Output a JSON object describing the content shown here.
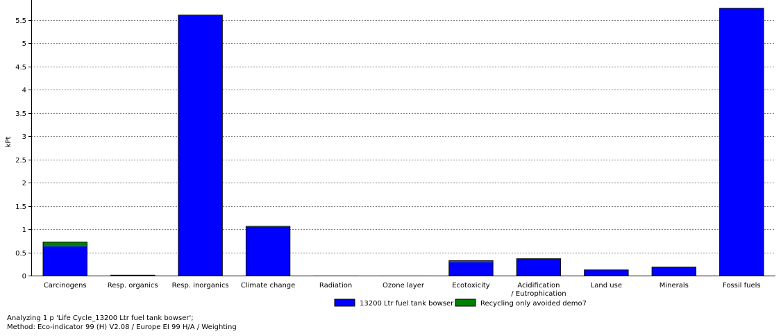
{
  "chart_data": {
    "type": "bar",
    "stacked": true,
    "ylabel": "kPt",
    "xlabel": "",
    "ylim": [
      0,
      5.75
    ],
    "y_ticks": [
      0,
      0.5,
      1,
      1.5,
      2,
      2.5,
      3,
      3.5,
      4,
      4.5,
      5,
      5.5
    ],
    "y_tick_labels": [
      "0",
      "0.5",
      "1",
      "1.5",
      "2",
      "2.5",
      "3",
      "3.5",
      "4",
      "4.5",
      "5",
      "5.5"
    ],
    "grid": true,
    "legend_position": "bottom-center",
    "categories": [
      "Carcinogens",
      "Resp. organics",
      "Resp. inorganics",
      "Climate change",
      "Radiation",
      "Ozone layer",
      "Ecotoxicity",
      "Acidification / Eutrophication",
      "Land use",
      "Minerals",
      "Fossil fuels"
    ],
    "category_label_lines": [
      [
        "Carcinogens"
      ],
      [
        "Resp. organics"
      ],
      [
        "Resp. inorganics"
      ],
      [
        "Climate change"
      ],
      [
        "Radiation"
      ],
      [
        "Ozone layer"
      ],
      [
        "Ecotoxicity"
      ],
      [
        "Acidification",
        "/ Eutrophication"
      ],
      [
        "Land use"
      ],
      [
        "Minerals"
      ],
      [
        "Fossil fuels"
      ]
    ],
    "series": [
      {
        "name": "13200 Ltr fuel tank bowser",
        "color": "#0000ff",
        "values": [
          0.63,
          0.004,
          5.6,
          1.05,
          0.001,
          0.0005,
          0.29,
          0.36,
          0.12,
          0.18,
          5.75
        ]
      },
      {
        "name": "Recycling only avoided demo7",
        "color": "#008000",
        "values": [
          0.09,
          0.006,
          0.005,
          0.01,
          0.0,
          0.0,
          0.03,
          0.003,
          0.002,
          0.002,
          0.0
        ]
      }
    ]
  },
  "footer": {
    "line1": "Analyzing 1 p 'Life Cycle_13200 Ltr fuel tank bowser';",
    "line2": "Method: Eco-indicator 99 (H) V2.08 / Europe EI 99 H/A / Weighting"
  }
}
